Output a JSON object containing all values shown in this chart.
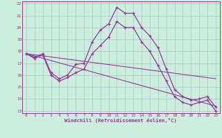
{
  "xlabel": "Windchill (Refroidissement éolien,°C)",
  "bg_color": "#cceedd",
  "grid_color": "#aacccc",
  "line_color": "#993399",
  "hours": [
    0,
    1,
    2,
    3,
    4,
    5,
    6,
    7,
    8,
    9,
    10,
    11,
    12,
    13,
    14,
    15,
    16,
    17,
    18,
    19,
    20,
    21,
    22,
    23
  ],
  "temp": [
    17.8,
    17.5,
    17.8,
    16.2,
    15.7,
    16.0,
    16.9,
    17.0,
    18.8,
    19.8,
    20.3,
    21.7,
    21.2,
    21.2,
    20.0,
    19.3,
    18.3,
    16.5,
    14.8,
    14.2,
    13.9,
    14.0,
    14.2,
    13.3
  ],
  "windchill": [
    17.8,
    17.4,
    17.7,
    16.0,
    15.5,
    15.8,
    16.2,
    16.5,
    17.8,
    18.5,
    19.2,
    20.5,
    20.0,
    20.0,
    18.8,
    18.0,
    16.8,
    15.5,
    14.2,
    13.7,
    13.5,
    13.7,
    13.9,
    13.0
  ],
  "min_line_x": [
    0,
    23
  ],
  "min_line_y": [
    17.8,
    13.4
  ],
  "max_line_x": [
    0,
    23
  ],
  "max_line_y": [
    17.8,
    15.7
  ],
  "ylim": [
    12.8,
    22.2
  ],
  "yticks": [
    13,
    14,
    15,
    16,
    17,
    18,
    19,
    20,
    21,
    22
  ],
  "xticks": [
    0,
    1,
    2,
    3,
    4,
    5,
    6,
    7,
    8,
    9,
    10,
    11,
    12,
    13,
    14,
    15,
    16,
    17,
    18,
    19,
    20,
    21,
    22,
    23
  ]
}
